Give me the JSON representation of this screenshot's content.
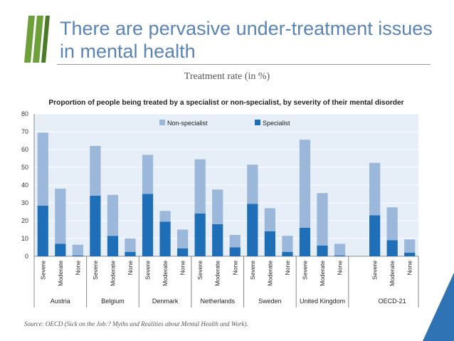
{
  "slide": {
    "title": "There are pervasive under-treatment issues in mental health",
    "subtitle": "Treatment rate (in %)",
    "source": "Source: OECD (Sick on the Job:? Myths and Realities about Mental Health and Work).",
    "logo_name": "oecd-logo"
  },
  "colors": {
    "title": "#5a83b8",
    "specialist": "#1e6fb8",
    "non_specialist": "#9bb7da",
    "plot_bg": "#e6eef8",
    "grid": "#ffffff",
    "logo_green": "#6d9f3b"
  },
  "chart_data": {
    "type": "bar",
    "stacked": true,
    "title": "Proportion of people being treated by a specialist or non-specialist, by severity of their mental disorder",
    "xlabel": "",
    "ylabel": "",
    "ylim": [
      0,
      80
    ],
    "yticks": [
      0,
      10,
      20,
      30,
      40,
      50,
      60,
      70,
      80
    ],
    "legend_position": "top-center",
    "grid": true,
    "categories": [
      "Severe",
      "Moderate",
      "None",
      "Severe",
      "Moderate",
      "None",
      "Severe",
      "Moderate",
      "None",
      "Severe",
      "Moderate",
      "None",
      "Severe",
      "Moderate",
      "None",
      "Severe",
      "Moderate",
      "None",
      "Severe",
      "Moderate",
      "None"
    ],
    "groups": [
      "Austria",
      "Belgium",
      "Denmark",
      "Netherlands",
      "Sweden",
      "United Kingdom",
      "OECD-21"
    ],
    "series": [
      {
        "name": "Specialist",
        "values": [
          28.5,
          7,
          0.5,
          34,
          11.5,
          2.5,
          35,
          19.5,
          4.5,
          24,
          18,
          5,
          29.5,
          14,
          2.5,
          16,
          6,
          0.5,
          23,
          9,
          2
        ]
      },
      {
        "name": "Non-specialist",
        "values": [
          41,
          31,
          6,
          28,
          23,
          7.5,
          22,
          6,
          10.5,
          30.5,
          19.5,
          7,
          22,
          13,
          9,
          49.5,
          29.5,
          6.5,
          29.5,
          18.5,
          7.5
        ]
      }
    ]
  }
}
